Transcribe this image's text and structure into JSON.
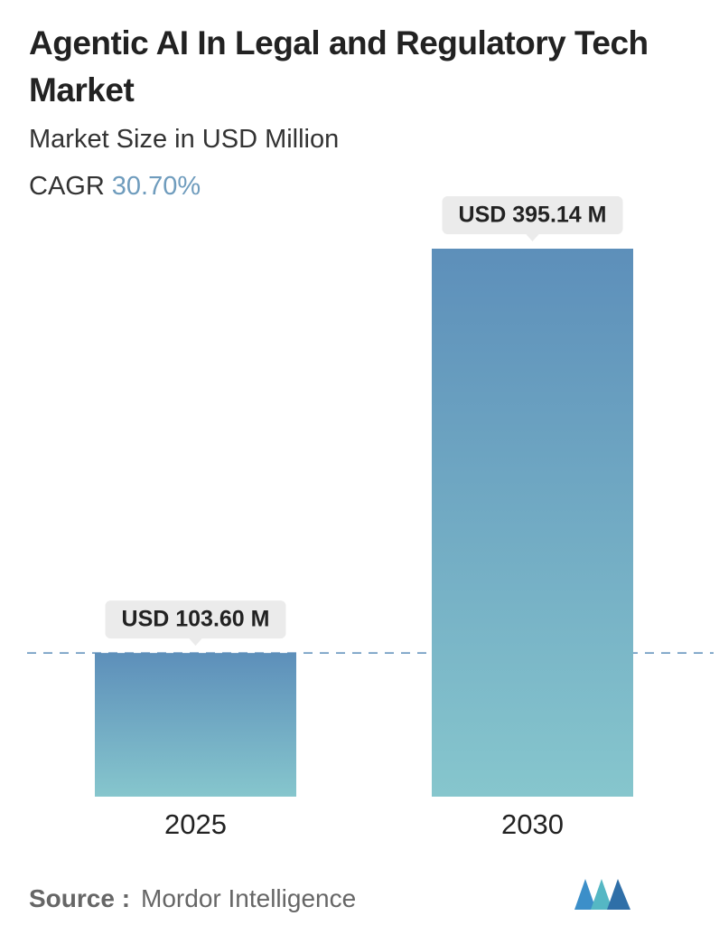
{
  "chart_data": {
    "type": "bar",
    "title": "Agentic AI In Legal and Regulatory Tech Market",
    "subtitle": "Market Size in USD Million",
    "cagr_label": "CAGR",
    "cagr_value": "30.70%",
    "categories": [
      "2025",
      "2030"
    ],
    "values": [
      103.6,
      395.14
    ],
    "value_labels": [
      "USD 103.60 M",
      "USD 395.14 M"
    ],
    "color_top": "#5d8fba",
    "color_bottom": "#86c6cd",
    "source_label": "Source :",
    "source": "Mordor Intelligence"
  }
}
